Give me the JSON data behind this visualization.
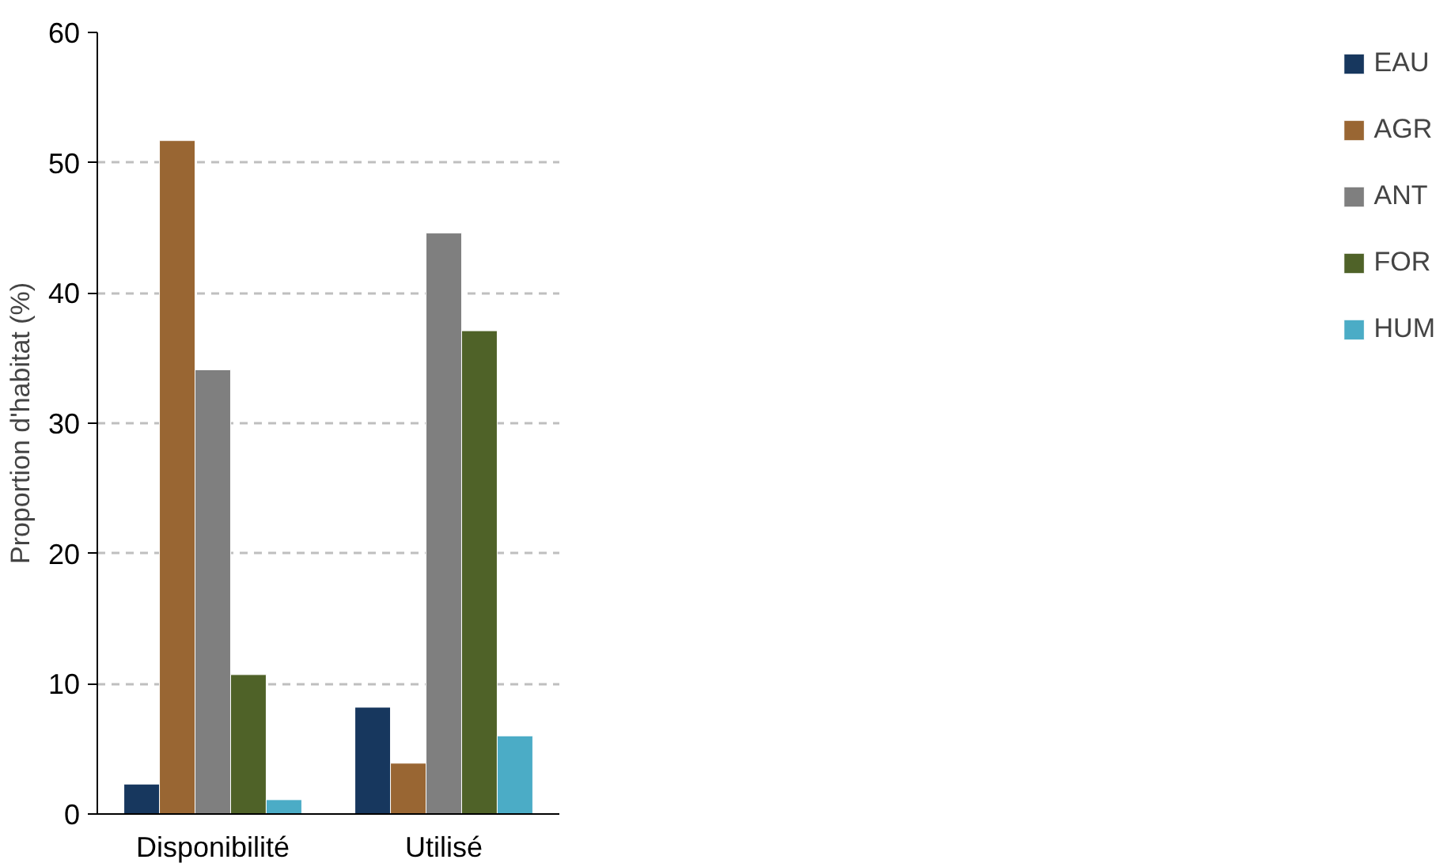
{
  "chart_data": {
    "type": "bar",
    "ylabel": "Proportion d'habitat (%)",
    "categories": [
      "Disponibilité",
      "Utilisé"
    ],
    "series": [
      {
        "name": "EAU",
        "color": "#17375e",
        "values": [
          2.3,
          8.2
        ]
      },
      {
        "name": "AGR",
        "color": "#996633",
        "values": [
          51.7,
          3.9
        ]
      },
      {
        "name": "ANT",
        "color": "#7f7f7f",
        "values": [
          34.1,
          44.6
        ]
      },
      {
        "name": "FOR",
        "color": "#4f6228",
        "values": [
          10.7,
          37.1
        ]
      },
      {
        "name": "HUM",
        "color": "#4bacc6",
        "values": [
          1.1,
          6.0
        ]
      }
    ],
    "ylim": [
      0,
      60
    ],
    "yticks": [
      0,
      10,
      20,
      30,
      40,
      50,
      60
    ],
    "grid": "y",
    "legend": "right"
  }
}
